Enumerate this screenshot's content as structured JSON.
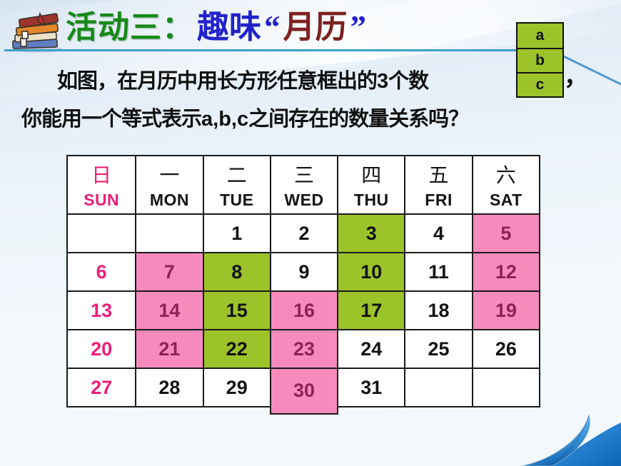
{
  "slide": {
    "title": {
      "activity_label": "活动三：",
      "topic_prefix": "趣味",
      "quote_open": "“",
      "topic_emphasis": "月历",
      "quote_close": "”"
    },
    "paragraph": {
      "line1_prefix": "如图，在月历中用长方形任意框出的",
      "line1_bold": "3",
      "line1_suffix": "个数",
      "comma": "，",
      "line2_prefix": "你能用一个等式表示",
      "line2_bold": "a,b,c",
      "line2_suffix": "之间存在的数量关系吗？"
    }
  },
  "abc_box": {
    "cells": [
      "a",
      "b",
      "c"
    ]
  },
  "calendar": {
    "headers": [
      {
        "cn": "日",
        "en": "SUN",
        "accent": true
      },
      {
        "cn": "一",
        "en": "MON"
      },
      {
        "cn": "二",
        "en": "TUE"
      },
      {
        "cn": "三",
        "en": "WED"
      },
      {
        "cn": "四",
        "en": "THU"
      },
      {
        "cn": "五",
        "en": "FRI"
      },
      {
        "cn": "六",
        "en": "SAT"
      }
    ],
    "rows": [
      [
        {
          "t": ""
        },
        {
          "t": ""
        },
        {
          "t": "1"
        },
        {
          "t": "2"
        },
        {
          "t": "3",
          "bg": "green"
        },
        {
          "t": "4"
        },
        {
          "t": "5",
          "bg": "pink"
        }
      ],
      [
        {
          "t": "6",
          "fg": "sun"
        },
        {
          "t": "7",
          "bg": "pink"
        },
        {
          "t": "8",
          "bg": "green"
        },
        {
          "t": "9"
        },
        {
          "t": "10",
          "bg": "green"
        },
        {
          "t": "11"
        },
        {
          "t": "12",
          "bg": "pink"
        }
      ],
      [
        {
          "t": "13",
          "fg": "sun"
        },
        {
          "t": "14",
          "bg": "pink"
        },
        {
          "t": "15",
          "bg": "green"
        },
        {
          "t": "16",
          "bg": "pink"
        },
        {
          "t": "17",
          "bg": "green"
        },
        {
          "t": "18"
        },
        {
          "t": "19",
          "bg": "pink"
        }
      ],
      [
        {
          "t": "20",
          "fg": "sun"
        },
        {
          "t": "21",
          "bg": "pink"
        },
        {
          "t": "22",
          "bg": "green"
        },
        {
          "t": "23",
          "bg": "pink"
        },
        {
          "t": "24"
        },
        {
          "t": "25"
        },
        {
          "t": "26"
        }
      ],
      [
        {
          "t": "27",
          "fg": "sun"
        },
        {
          "t": "28"
        },
        {
          "t": "29"
        },
        {
          "t": "30",
          "bg": "pink",
          "ext": true
        },
        {
          "t": "31"
        },
        {
          "t": ""
        },
        {
          "t": ""
        }
      ]
    ]
  },
  "colors": {
    "highlight_green": "#9cc32a",
    "highlight_pink": "#f78abd",
    "sunday_text": "#ed1d78",
    "on_pink_text": "#8e2158",
    "title_green": "#168a16",
    "title_blue": "#2323cc",
    "title_maroon": "#7e2121",
    "rule_teal": "#3f9ecd",
    "curl_blue": "#1b7cd6"
  }
}
